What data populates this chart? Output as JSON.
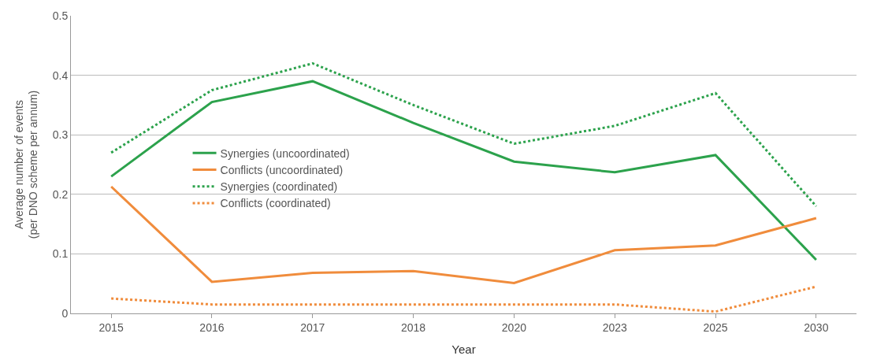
{
  "chart_data": {
    "type": "line",
    "xlabel": "Year",
    "ylabel": "Average number of events\n(per DNO scheme per annum)",
    "categories": [
      "2015",
      "2016",
      "2017",
      "2018",
      "2020",
      "2023",
      "2025",
      "2030"
    ],
    "series": [
      {
        "name": "Synergies (uncoordinated)",
        "color": "#2ca24c",
        "line_style": "solid",
        "values": [
          0.23,
          0.355,
          0.39,
          0.32,
          0.255,
          0.237,
          0.266,
          0.09
        ]
      },
      {
        "name": "Conflicts (uncoordinated)",
        "color": "#f08c3c",
        "line_style": "solid",
        "values": [
          0.213,
          0.053,
          0.068,
          0.071,
          0.051,
          0.106,
          0.114,
          0.16
        ]
      },
      {
        "name": "Synergies (coordinated)",
        "color": "#2ca24c",
        "line_style": "dotted",
        "values": [
          0.27,
          0.375,
          0.42,
          0.35,
          0.285,
          0.315,
          0.37,
          0.18
        ]
      },
      {
        "name": "Conflicts (coordinated)",
        "color": "#f08c3c",
        "line_style": "dotted",
        "values": [
          0.025,
          0.015,
          0.015,
          0.015,
          0.015,
          0.015,
          0.003,
          0.045
        ]
      }
    ],
    "ylim": [
      0,
      0.5
    ],
    "yticks": [
      0,
      0.1,
      0.2,
      0.3,
      0.4,
      0.5
    ],
    "grid": "y",
    "legend": "left",
    "marker": "none"
  }
}
